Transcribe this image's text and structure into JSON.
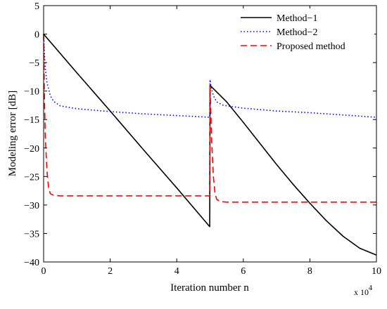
{
  "chart_data": {
    "type": "line",
    "xlabel": "Iteration number n",
    "ylabel": "Modeling error [dB]",
    "x_multiplier": "x 10",
    "x_multiplier_exp": "4",
    "xlim": [
      0,
      10
    ],
    "ylim": [
      -40,
      5
    ],
    "x_ticks": [
      0,
      2,
      4,
      6,
      8,
      10
    ],
    "y_ticks": [
      5,
      0,
      -5,
      -10,
      -15,
      -20,
      -25,
      -30,
      -35,
      -40
    ],
    "grid": false,
    "legend_position": "top-right",
    "series": [
      {
        "name": "Method−1",
        "color": "#000000",
        "style": "solid",
        "x": [
          0,
          1,
          2,
          3,
          4,
          4.99,
          5.0,
          5.5,
          6,
          6.5,
          7,
          7.5,
          8,
          8.5,
          9,
          9.5,
          10
        ],
        "y": [
          0,
          -6.8,
          -13.5,
          -20.3,
          -27,
          -33.8,
          -9,
          -11.9,
          -15.5,
          -19.2,
          -22.9,
          -26.4,
          -29.7,
          -32.8,
          -35.5,
          -37.6,
          -38.8
        ]
      },
      {
        "name": "Method−2",
        "color": "#0000ff",
        "style": "dotted",
        "x": [
          0,
          0.02,
          0.05,
          0.1,
          0.2,
          0.3,
          0.5,
          1,
          2,
          3,
          4,
          4.99,
          5.0,
          5.03,
          5.1,
          5.2,
          5.4,
          6,
          7,
          8,
          9,
          10
        ],
        "y": [
          0,
          -3,
          -6,
          -8.5,
          -10.8,
          -11.8,
          -12.6,
          -13.1,
          -13.6,
          -14,
          -14.3,
          -14.6,
          -8,
          -9.3,
          -10.8,
          -11.9,
          -12.5,
          -13,
          -13.5,
          -13.8,
          -14.2,
          -14.6
        ]
      },
      {
        "name": "Proposed method",
        "color": "#ff0000",
        "style": "dashed",
        "x": [
          0,
          0.02,
          0.05,
          0.1,
          0.15,
          0.2,
          0.3,
          0.5,
          1,
          2,
          3,
          4,
          4.99,
          5.0,
          5.02,
          5.05,
          5.1,
          5.15,
          5.2,
          5.3,
          5.5,
          6,
          7,
          8,
          9,
          10
        ],
        "y": [
          0,
          -10,
          -18,
          -24,
          -27,
          -28,
          -28.3,
          -28.4,
          -28.4,
          -28.4,
          -28.4,
          -28.4,
          -28.4,
          -9,
          -13,
          -19,
          -25,
          -28,
          -29,
          -29.4,
          -29.5,
          -29.5,
          -29.5,
          -29.5,
          -29.5,
          -29.5
        ]
      }
    ]
  }
}
